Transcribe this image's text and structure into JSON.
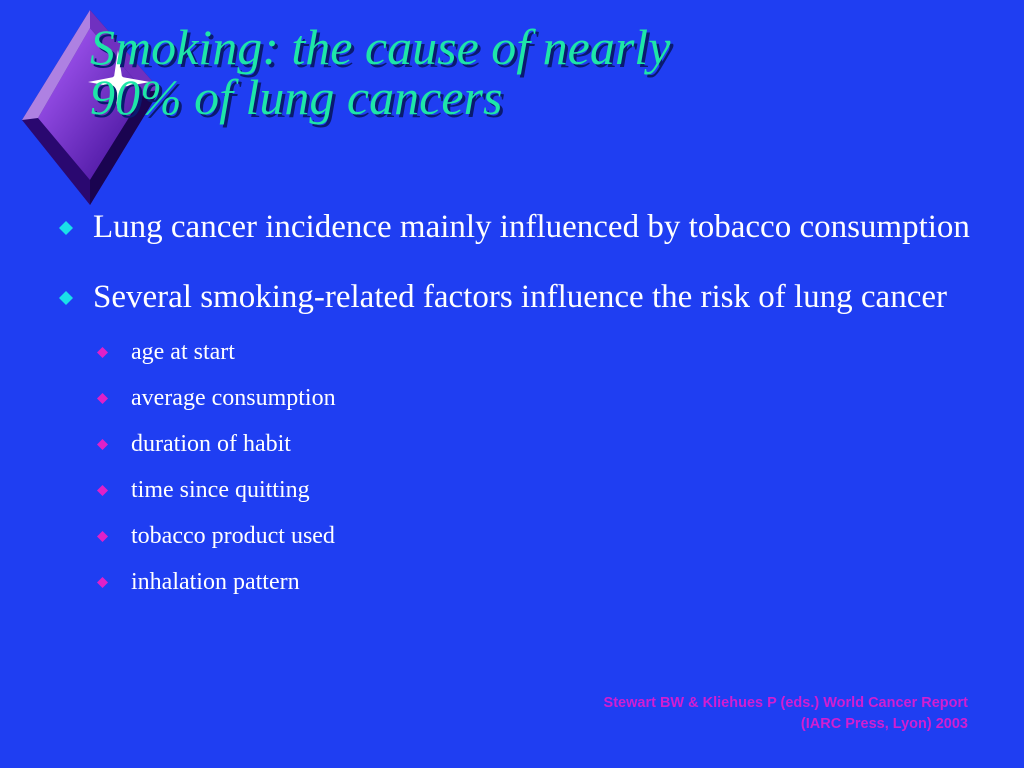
{
  "title": {
    "lines": [
      "Smoking: the cause of nearly",
      "90% of lung cancers"
    ]
  },
  "bullets": [
    {
      "text": "Lung cancer incidence mainly influenced by tobacco consumption",
      "sub": []
    },
    {
      "text": "Several smoking-related factors influence the risk of lung cancer",
      "sub": [
        "age at start",
        "average consumption",
        "duration of habit",
        "time since quitting",
        "tobacco product used",
        "inhalation pattern"
      ]
    }
  ],
  "citation": {
    "lines": [
      "Stewart BW & Kliehues P (eds.) World Cancer Report",
      "(IARC Press, Lyon) 2003"
    ]
  }
}
